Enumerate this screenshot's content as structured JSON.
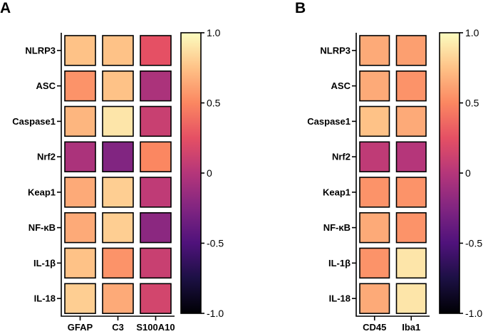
{
  "panels": {
    "a": {
      "label": "A"
    },
    "b": {
      "label": "B"
    }
  },
  "chart_data": [
    {
      "type": "heatmap",
      "panel": "A",
      "rows": [
        "NLRP3",
        "ASC",
        "Caspase1",
        "Nrf2",
        "Keap1",
        "NF-κB",
        "IL-1β",
        "IL-18"
      ],
      "columns": [
        "GFAP",
        "C3",
        "S100A10"
      ],
      "values": [
        [
          0.75,
          0.75,
          0.25
        ],
        [
          0.55,
          0.75,
          -0.05
        ],
        [
          0.7,
          0.9,
          0.1
        ],
        [
          -0.05,
          -0.25,
          0.5
        ],
        [
          0.65,
          0.8,
          0.05
        ],
        [
          0.65,
          0.8,
          -0.2
        ],
        [
          0.75,
          0.55,
          0.1
        ],
        [
          0.8,
          0.65,
          0.15
        ]
      ],
      "colorbar": {
        "min": -1.0,
        "max": 1.0,
        "ticks": [
          "1.0",
          "0.5",
          "0",
          "-0.5",
          "-1.0"
        ]
      },
      "colormap": "magma"
    },
    {
      "type": "heatmap",
      "panel": "B",
      "rows": [
        "NLRP3",
        "ASC",
        "Caspase1",
        "Nrf2",
        "Keap1",
        "NF-κB",
        "IL-1β",
        "IL-18"
      ],
      "columns": [
        "CD45",
        "Iba1"
      ],
      "values": [
        [
          0.65,
          0.6
        ],
        [
          0.65,
          0.55
        ],
        [
          0.75,
          0.65
        ],
        [
          0.05,
          0.0
        ],
        [
          0.55,
          0.55
        ],
        [
          0.65,
          0.55
        ],
        [
          0.55,
          0.9
        ],
        [
          0.65,
          0.9
        ]
      ],
      "colorbar": {
        "min": -1.0,
        "max": 1.0,
        "ticks": [
          "1.0",
          "0.5",
          "0",
          "-0.5",
          "-1.0"
        ]
      },
      "colormap": "magma"
    }
  ]
}
